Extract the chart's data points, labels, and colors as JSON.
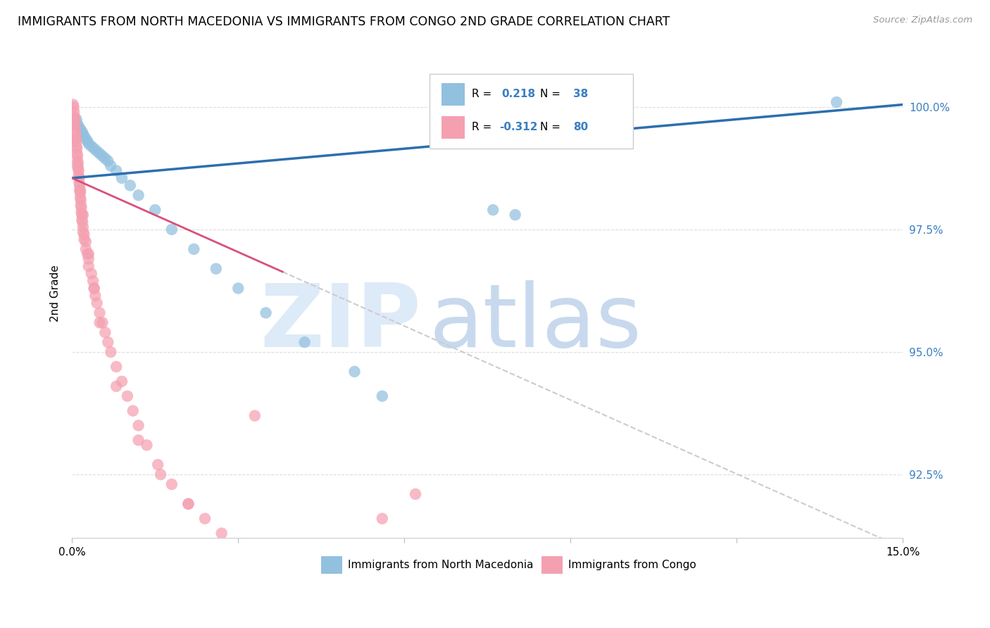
{
  "title": "IMMIGRANTS FROM NORTH MACEDONIA VS IMMIGRANTS FROM CONGO 2ND GRADE CORRELATION CHART",
  "source": "Source: ZipAtlas.com",
  "ylabel": "2nd Grade",
  "ytick_vals": [
    92.5,
    95.0,
    97.5,
    100.0
  ],
  "xlim": [
    0.0,
    15.0
  ],
  "ylim": [
    91.2,
    101.2
  ],
  "legend_blue_r": "0.218",
  "legend_blue_n": "38",
  "legend_pink_r": "-0.312",
  "legend_pink_n": "80",
  "legend_blue_label": "Immigrants from North Macedonia",
  "legend_pink_label": "Immigrants from Congo",
  "blue_color": "#92c0df",
  "pink_color": "#f4a0b0",
  "blue_line_color": "#2c6fad",
  "pink_line_color": "#d9507a",
  "dashed_line_color": "#cccccc",
  "blue_line_x0": 0.0,
  "blue_line_y0": 98.55,
  "blue_line_x1": 15.0,
  "blue_line_y1": 100.05,
  "pink_line_x0": 0.0,
  "pink_line_y0": 98.55,
  "pink_line_x1": 15.0,
  "pink_line_y1": 91.0,
  "pink_solid_end": 3.8,
  "blue_scatter_x": [
    0.08,
    0.1,
    0.12,
    0.15,
    0.18,
    0.2,
    0.22,
    0.25,
    0.28,
    0.3,
    0.35,
    0.4,
    0.45,
    0.5,
    0.55,
    0.6,
    0.65,
    0.7,
    0.8,
    0.9,
    1.05,
    1.2,
    1.5,
    1.8,
    2.2,
    2.6,
    3.0,
    3.5,
    4.2,
    5.1,
    5.6,
    7.6,
    8.0,
    13.8
  ],
  "blue_scatter_y": [
    99.75,
    99.65,
    99.6,
    99.55,
    99.5,
    99.45,
    99.4,
    99.35,
    99.3,
    99.25,
    99.2,
    99.15,
    99.1,
    99.05,
    99.0,
    98.95,
    98.9,
    98.8,
    98.7,
    98.55,
    98.4,
    98.2,
    97.9,
    97.5,
    97.1,
    96.7,
    96.3,
    95.8,
    95.2,
    94.6,
    94.1,
    97.9,
    97.8,
    100.1
  ],
  "pink_scatter_x": [
    0.02,
    0.03,
    0.04,
    0.04,
    0.05,
    0.05,
    0.06,
    0.06,
    0.07,
    0.07,
    0.08,
    0.08,
    0.09,
    0.09,
    0.1,
    0.1,
    0.11,
    0.11,
    0.12,
    0.12,
    0.13,
    0.13,
    0.14,
    0.14,
    0.15,
    0.15,
    0.16,
    0.16,
    0.17,
    0.17,
    0.18,
    0.18,
    0.19,
    0.2,
    0.2,
    0.22,
    0.22,
    0.25,
    0.25,
    0.28,
    0.3,
    0.3,
    0.35,
    0.38,
    0.4,
    0.42,
    0.45,
    0.5,
    0.55,
    0.6,
    0.65,
    0.7,
    0.8,
    0.9,
    1.0,
    1.1,
    1.2,
    1.35,
    1.55,
    1.8,
    2.1,
    2.4,
    2.7,
    0.05,
    0.1,
    0.15,
    0.2,
    0.3,
    0.4,
    0.5,
    0.8,
    1.2,
    1.6,
    2.1,
    3.3,
    5.6,
    6.2
  ],
  "pink_scatter_y": [
    100.05,
    100.0,
    99.9,
    99.8,
    99.75,
    99.65,
    99.6,
    99.5,
    99.45,
    99.35,
    99.3,
    99.2,
    99.15,
    99.05,
    99.0,
    98.9,
    98.85,
    98.75,
    98.7,
    98.6,
    98.55,
    98.45,
    98.4,
    98.3,
    98.25,
    98.15,
    98.1,
    98.0,
    97.95,
    97.85,
    97.8,
    97.7,
    97.65,
    97.55,
    97.45,
    97.4,
    97.3,
    97.25,
    97.1,
    97.0,
    96.9,
    96.75,
    96.6,
    96.45,
    96.3,
    96.15,
    96.0,
    95.8,
    95.6,
    95.4,
    95.2,
    95.0,
    94.7,
    94.4,
    94.1,
    93.8,
    93.5,
    93.1,
    92.7,
    92.3,
    91.9,
    91.6,
    91.3,
    99.3,
    98.8,
    98.3,
    97.8,
    97.0,
    96.3,
    95.6,
    94.3,
    93.2,
    92.5,
    91.9,
    93.7,
    91.6,
    92.1
  ]
}
